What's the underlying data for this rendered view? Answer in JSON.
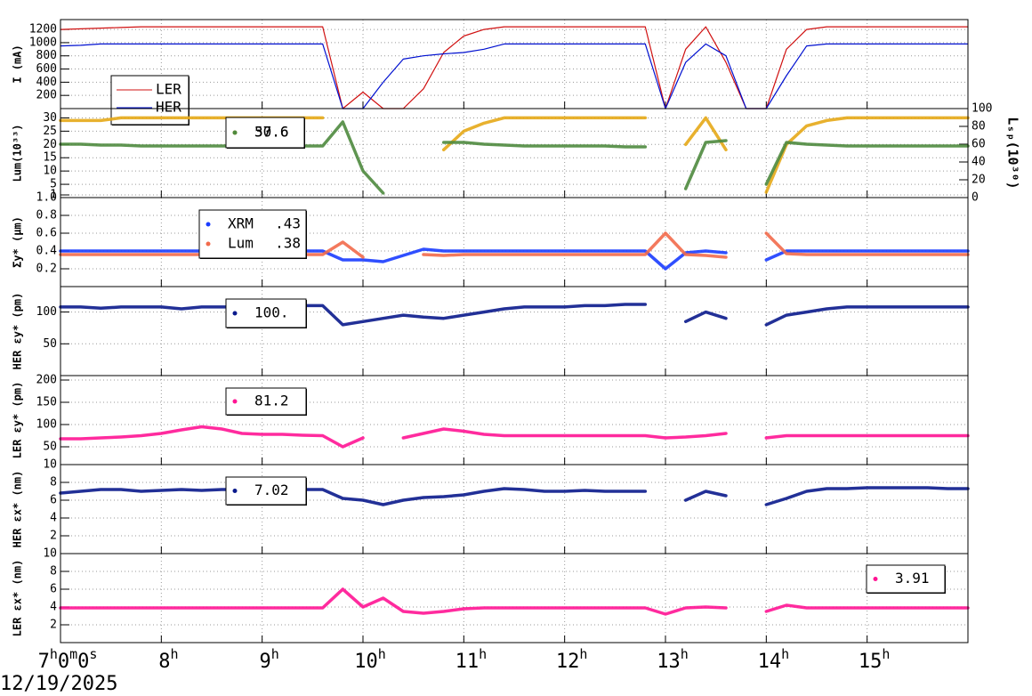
{
  "chart_data": [
    {
      "type": "line",
      "ylabel": "I (mA)",
      "xlim": [
        7,
        16
      ],
      "ylim": [
        0,
        1350
      ],
      "yticks": [
        200,
        400,
        600,
        800,
        1000,
        1200
      ],
      "grid": true,
      "x": [
        7.0,
        7.2,
        7.4,
        7.6,
        7.8,
        8.0,
        8.2,
        8.4,
        8.6,
        8.8,
        9.0,
        9.2,
        9.4,
        9.6,
        9.8,
        10.0,
        10.2,
        10.4,
        10.6,
        10.8,
        11.0,
        11.2,
        11.4,
        11.6,
        11.8,
        12.0,
        12.2,
        12.4,
        12.6,
        12.8,
        13.0,
        13.2,
        13.4,
        13.6,
        13.8,
        14.0,
        14.2,
        14.4,
        14.6,
        14.8,
        15.0,
        15.2,
        15.4,
        15.6,
        15.8,
        16.0
      ],
      "series": [
        {
          "name": "LER",
          "color": "#d01010",
          "values": [
            1200,
            1210,
            1220,
            1230,
            1240,
            1240,
            1240,
            1240,
            1240,
            1240,
            1240,
            1240,
            1240,
            1240,
            0,
            250,
            0,
            0,
            300,
            850,
            1100,
            1200,
            1240,
            1240,
            1240,
            1240,
            1240,
            1240,
            1240,
            1240,
            0,
            900,
            1240,
            700,
            0,
            0,
            900,
            1200,
            1240,
            1240,
            1240,
            1240,
            1240,
            1240,
            1240,
            1240
          ]
        },
        {
          "name": "HER",
          "color": "#0010d0",
          "values": [
            950,
            960,
            980,
            980,
            980,
            980,
            980,
            980,
            980,
            980,
            980,
            980,
            980,
            980,
            0,
            0,
            400,
            750,
            800,
            830,
            850,
            900,
            980,
            980,
            980,
            980,
            980,
            980,
            980,
            980,
            0,
            700,
            980,
            800,
            0,
            0,
            500,
            950,
            980,
            980,
            980,
            980,
            980,
            980,
            980,
            980
          ]
        }
      ]
    },
    {
      "type": "scatter",
      "ylabel": "Lum(10³³)",
      "y2label": "Lₛₚ(10³⁰)",
      "xlim": [
        7,
        16
      ],
      "ylim": [
        0,
        33.5
      ],
      "yticks": [
        1,
        5,
        10,
        15,
        20,
        25,
        30
      ],
      "y2lim": [
        0,
        100
      ],
      "y2ticks": [
        0,
        20,
        40,
        60,
        80,
        100
      ],
      "grid": true,
      "x": [
        7.0,
        7.2,
        7.4,
        7.6,
        7.8,
        8.0,
        8.2,
        8.4,
        8.6,
        8.8,
        9.0,
        9.2,
        9.4,
        9.6,
        9.8,
        10.0,
        10.2,
        10.4,
        10.6,
        10.8,
        11.0,
        11.2,
        11.4,
        11.6,
        11.8,
        12.0,
        12.2,
        12.4,
        12.6,
        12.8,
        13.0,
        13.2,
        13.4,
        13.6,
        13.8,
        14.0,
        14.2,
        14.4,
        14.6,
        14.8,
        15.0,
        15.2,
        15.4,
        15.6,
        15.8,
        16.0
      ],
      "series": [
        {
          "name": "30.6",
          "color": "#e6a817",
          "values": [
            29,
            29,
            29,
            30,
            30,
            30,
            30,
            30,
            30,
            30,
            30,
            30,
            30,
            30,
            null,
            null,
            null,
            null,
            null,
            18,
            25,
            28,
            30,
            30,
            30,
            30,
            30,
            30,
            30,
            30,
            null,
            20,
            30,
            18,
            null,
            2,
            20,
            27,
            29,
            30,
            30,
            30,
            30,
            30,
            30,
            30
          ]
        },
        {
          "name": "57.6",
          "color": "#4e8a3e",
          "axis": "y2",
          "values": [
            60,
            60,
            59,
            59,
            58,
            58,
            58,
            58,
            58,
            58,
            58,
            58,
            58,
            58,
            85,
            30,
            5,
            null,
            null,
            62,
            62,
            60,
            59,
            58,
            58,
            58,
            58,
            58,
            57,
            57,
            null,
            10,
            62,
            64,
            null,
            15,
            62,
            60,
            59,
            58,
            58,
            58,
            58,
            58,
            58,
            58
          ]
        }
      ]
    },
    {
      "type": "scatter",
      "ylabel": "Σy* (μm)",
      "xlim": [
        7,
        16
      ],
      "ylim": [
        0,
        1
      ],
      "yticks": [
        0.2,
        0.4,
        0.6,
        0.8,
        {
          "value": 1,
          "label": "1.0"
        }
      ],
      "grid": true,
      "x": [
        7.0,
        7.2,
        7.4,
        7.6,
        7.8,
        8.0,
        8.2,
        8.4,
        8.6,
        8.8,
        9.0,
        9.2,
        9.4,
        9.6,
        9.8,
        10.0,
        10.2,
        10.4,
        10.6,
        10.8,
        11.0,
        11.2,
        11.4,
        11.6,
        11.8,
        12.0,
        12.2,
        12.4,
        12.6,
        12.8,
        13.0,
        13.2,
        13.4,
        13.6,
        13.8,
        14.0,
        14.2,
        14.4,
        14.6,
        14.8,
        15.0,
        15.2,
        15.4,
        15.6,
        15.8,
        16.0
      ],
      "series": [
        {
          "name": "XRM",
          "legend_value": ".43",
          "color": "#1a3cff",
          "values": [
            0.4,
            0.4,
            0.4,
            0.4,
            0.4,
            0.4,
            0.4,
            0.4,
            0.4,
            0.4,
            0.4,
            0.4,
            0.4,
            0.4,
            0.3,
            0.3,
            0.28,
            0.35,
            0.42,
            0.4,
            0.4,
            0.4,
            0.4,
            0.4,
            0.4,
            0.4,
            0.4,
            0.4,
            0.4,
            0.4,
            0.2,
            0.38,
            0.4,
            0.38,
            null,
            0.3,
            0.4,
            0.4,
            0.4,
            0.4,
            0.4,
            0.4,
            0.4,
            0.4,
            0.4,
            0.4
          ]
        },
        {
          "name": "Lum",
          "legend_value": ".38",
          "color": "#f26a4b",
          "values": [
            0.36,
            0.36,
            0.36,
            0.36,
            0.36,
            0.36,
            0.36,
            0.36,
            0.36,
            0.36,
            0.36,
            0.36,
            0.36,
            0.36,
            0.5,
            0.33,
            null,
            null,
            0.36,
            0.35,
            0.36,
            0.36,
            0.36,
            0.36,
            0.36,
            0.36,
            0.36,
            0.36,
            0.36,
            0.36,
            0.6,
            0.36,
            0.35,
            0.33,
            null,
            0.6,
            0.37,
            0.36,
            0.36,
            0.36,
            0.36,
            0.36,
            0.36,
            0.36,
            0.36,
            0.36
          ]
        }
      ]
    },
    {
      "type": "scatter",
      "ylabel": "HER εy* (pm)",
      "xlim": [
        7,
        16
      ],
      "ylim": [
        0,
        140
      ],
      "yticks": [
        50,
        100
      ],
      "grid": true,
      "x": [
        7.0,
        7.2,
        7.4,
        7.6,
        7.8,
        8.0,
        8.2,
        8.4,
        8.6,
        8.8,
        9.0,
        9.2,
        9.4,
        9.6,
        9.8,
        10.0,
        10.2,
        10.4,
        10.6,
        10.8,
        11.0,
        11.2,
        11.4,
        11.6,
        11.8,
        12.0,
        12.2,
        12.4,
        12.6,
        12.8,
        13.0,
        13.2,
        13.4,
        13.6,
        13.8,
        14.0,
        14.2,
        14.4,
        14.6,
        14.8,
        15.0,
        15.2,
        15.4,
        15.6,
        15.8,
        16.0
      ],
      "series": [
        {
          "name": "100.",
          "color": "#0a1a8c",
          "values": [
            108,
            108,
            106,
            108,
            108,
            108,
            105,
            108,
            108,
            108,
            110,
            110,
            110,
            110,
            80,
            85,
            90,
            95,
            92,
            90,
            95,
            100,
            105,
            108,
            108,
            108,
            110,
            110,
            112,
            112,
            null,
            85,
            100,
            90,
            null,
            80,
            95,
            100,
            105,
            108,
            108,
            108,
            108,
            108,
            108,
            108
          ]
        }
      ]
    },
    {
      "type": "scatter",
      "ylabel": "LER εy* (pm)",
      "xlim": [
        7,
        16
      ],
      "ylim": [
        10,
        210
      ],
      "yticks": [
        10,
        50,
        100,
        150,
        200
      ],
      "grid": true,
      "x": [
        7.0,
        7.2,
        7.4,
        7.6,
        7.8,
        8.0,
        8.2,
        8.4,
        8.6,
        8.8,
        9.0,
        9.2,
        9.4,
        9.6,
        9.8,
        10.0,
        10.2,
        10.4,
        10.6,
        10.8,
        11.0,
        11.2,
        11.4,
        11.6,
        11.8,
        12.0,
        12.2,
        12.4,
        12.6,
        12.8,
        13.0,
        13.2,
        13.4,
        13.6,
        13.8,
        14.0,
        14.2,
        14.4,
        14.6,
        14.8,
        15.0,
        15.2,
        15.4,
        15.6,
        15.8,
        16.0
      ],
      "series": [
        {
          "name": "81.2",
          "color": "#ff1493",
          "values": [
            68,
            68,
            70,
            72,
            75,
            80,
            88,
            95,
            90,
            80,
            78,
            78,
            76,
            75,
            50,
            70,
            null,
            70,
            80,
            90,
            85,
            78,
            75,
            75,
            75,
            75,
            75,
            75,
            75,
            75,
            70,
            72,
            75,
            80,
            null,
            70,
            75,
            75,
            75,
            75,
            75,
            75,
            75,
            75,
            75,
            75
          ]
        }
      ]
    },
    {
      "type": "scatter",
      "ylabel": "HER εx* (nm)",
      "xlim": [
        7,
        16
      ],
      "ylim": [
        0,
        10
      ],
      "yticks": [
        2,
        4,
        6,
        8
      ],
      "grid": true,
      "x": [
        7.0,
        7.2,
        7.4,
        7.6,
        7.8,
        8.0,
        8.2,
        8.4,
        8.6,
        8.8,
        9.0,
        9.2,
        9.4,
        9.6,
        9.8,
        10.0,
        10.2,
        10.4,
        10.6,
        10.8,
        11.0,
        11.2,
        11.4,
        11.6,
        11.8,
        12.0,
        12.2,
        12.4,
        12.6,
        12.8,
        13.0,
        13.2,
        13.4,
        13.6,
        13.8,
        14.0,
        14.2,
        14.4,
        14.6,
        14.8,
        15.0,
        15.2,
        15.4,
        15.6,
        15.8,
        16.0
      ],
      "series": [
        {
          "name": "7.02",
          "color": "#0a1a8c",
          "values": [
            6.8,
            7.0,
            7.2,
            7.2,
            7.0,
            7.1,
            7.2,
            7.1,
            7.2,
            7.2,
            7.2,
            7.2,
            7.2,
            7.2,
            6.2,
            6.0,
            5.5,
            6.0,
            6.3,
            6.4,
            6.6,
            7.0,
            7.3,
            7.2,
            7.0,
            7.0,
            7.1,
            7.0,
            7.0,
            7.0,
            null,
            6.0,
            7.0,
            6.5,
            null,
            5.5,
            6.2,
            7.0,
            7.3,
            7.3,
            7.4,
            7.4,
            7.4,
            7.4,
            7.3,
            7.3
          ]
        }
      ]
    },
    {
      "type": "scatter",
      "ylabel": "LER εx* (nm)",
      "xlabel": "12/19/2025",
      "xlim": [
        7,
        16
      ],
      "ylim": [
        0,
        10
      ],
      "yticks": [
        2,
        4,
        6,
        8,
        10
      ],
      "grid": true,
      "xticks": [
        {
          "value": 7,
          "label": "7h0m0s"
        },
        {
          "value": 8,
          "label": "8h"
        },
        {
          "value": 9,
          "label": "9h"
        },
        {
          "value": 10,
          "label": "10h"
        },
        {
          "value": 11,
          "label": "11h"
        },
        {
          "value": 12,
          "label": "12h"
        },
        {
          "value": 13,
          "label": "13h"
        },
        {
          "value": 14,
          "label": "14h"
        },
        {
          "value": 15,
          "label": "15h"
        }
      ],
      "x": [
        7.0,
        7.2,
        7.4,
        7.6,
        7.8,
        8.0,
        8.2,
        8.4,
        8.6,
        8.8,
        9.0,
        9.2,
        9.4,
        9.6,
        9.8,
        10.0,
        10.2,
        10.4,
        10.6,
        10.8,
        11.0,
        11.2,
        11.4,
        11.6,
        11.8,
        12.0,
        12.2,
        12.4,
        12.6,
        12.8,
        13.0,
        13.2,
        13.4,
        13.6,
        13.8,
        14.0,
        14.2,
        14.4,
        14.6,
        14.8,
        15.0,
        15.2,
        15.4,
        15.6,
        15.8,
        16.0
      ],
      "series": [
        {
          "name": "3.91",
          "color": "#ff1493",
          "values": [
            3.9,
            3.9,
            3.9,
            3.9,
            3.9,
            3.9,
            3.9,
            3.9,
            3.9,
            3.9,
            3.9,
            3.9,
            3.9,
            3.9,
            6,
            4,
            5,
            3.5,
            3.3,
            3.5,
            3.8,
            3.9,
            3.9,
            3.9,
            3.9,
            3.9,
            3.9,
            3.9,
            3.9,
            3.9,
            3.2,
            3.9,
            4.0,
            3.9,
            null,
            3.5,
            4.2,
            3.9,
            3.9,
            3.9,
            3.9,
            3.9,
            3.9,
            3.9,
            3.9,
            3.9
          ]
        }
      ]
    }
  ]
}
